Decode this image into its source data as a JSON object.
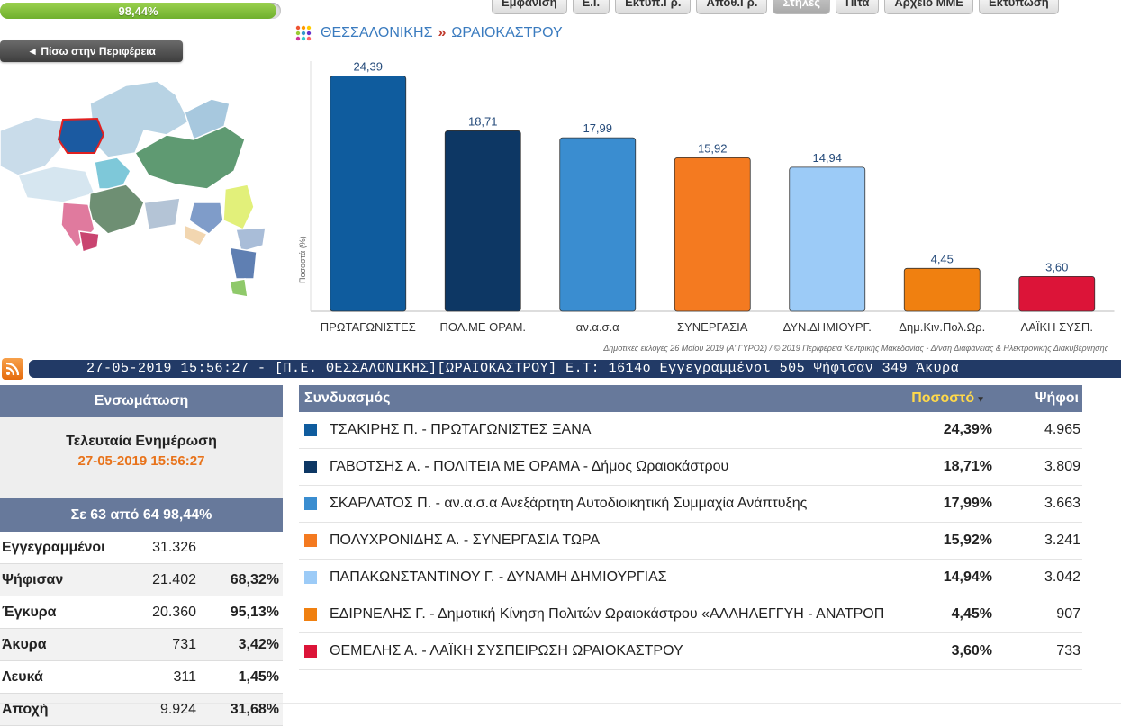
{
  "progress": {
    "label": "98,44%",
    "value": 98.44
  },
  "nav": [
    "Εμφάνιση",
    "Ε.Ι.",
    "Εκτυπ.Γρ.",
    "Αποθ.Γρ.",
    "Στήλες",
    "Πίτα",
    "Αρχείο ΜΜΕ",
    "Εκτύπωση"
  ],
  "nav_active": "Στήλες",
  "back_button": "◄ Πίσω στην Περιφέρεια",
  "breadcrumb": {
    "parent": "ΘΕΣΣΑΛΟΝΙΚΗΣ",
    "separator": "»",
    "current": "ΩΡΑΙΟΚΑΣΤΡΟΥ"
  },
  "chart_data": {
    "type": "bar",
    "categories": [
      "ΠΡΩΤΑΓΩΝΙΣΤΕΣ",
      "ΠΟΛ.ΜΕ ΟΡΑΜ.",
      "αν.α.σ.α",
      "ΣΥΝΕΡΓΑΣΙΑ",
      "ΔΥΝ.ΔΗΜΙΟΥΡΓ.",
      "Δημ.Κιν.Πολ.Ωρ.",
      "ΛΑΪΚΗ ΣΥΣΠ."
    ],
    "values": [
      24.39,
      18.71,
      17.99,
      15.92,
      14.94,
      4.45,
      3.6
    ],
    "value_labels": [
      "24,39",
      "18,71",
      "17,99",
      "15,92",
      "14,94",
      "4,45",
      "3,60"
    ],
    "colors": [
      "#0f5c9e",
      "#0d3764",
      "#3a8dd0",
      "#f47a20",
      "#9ccbf7",
      "#f08010",
      "#dc1438"
    ],
    "ylabel": "Ποσοστά (%)",
    "ylim": [
      0,
      25
    ]
  },
  "footnote": "Δημοτικές εκλογές 26 Μαΐου 2019 (Α' ΓΥΡΟΣ) / © 2019 Περιφέρεια Κεντρικής Μακεδονίας - Δ/νση Διαφάνειας & Ηλεκτρονικής Διακυβέρνησης",
  "ticker": "27-05-2019 15:56:27 - [Π.Ε. ΘΕΣΣΑΛΟΝΙΚΗΣ][ΩΡΑΙΟΚΑΣΤΡΟΥ]  Ε.Τ: 1614ο  Εγγεγραμμένοι 505  Ψήφισαν 349  Άκυρα",
  "left": {
    "title": "Ενσωμάτωση",
    "update_label": "Τελευταία Ενημέρωση",
    "update_time": "27-05-2019 15:56:27",
    "counted": "Σε 63 από  64   98,44%",
    "stats": [
      {
        "label": "Εγγεγραμμένοι",
        "value": "31.326",
        "pct": ""
      },
      {
        "label": "Ψήφισαν",
        "value": "21.402",
        "pct": "68,32%"
      },
      {
        "label": "Έγκυρα",
        "value": "20.360",
        "pct": "95,13%"
      },
      {
        "label": "Άκυρα",
        "value": "731",
        "pct": "3,42%"
      },
      {
        "label": "Λευκά",
        "value": "311",
        "pct": "1,45%"
      },
      {
        "label": "Αποχή",
        "value": "9.924",
        "pct": "31,68%"
      }
    ]
  },
  "results": {
    "headers": {
      "party": "Συνδυασμός",
      "pct": "Ποσοστό",
      "votes": "Ψήφοι"
    },
    "rows": [
      {
        "name": "ΤΣΑΚΙΡΗΣ Π. - ΠΡΩΤΑΓΩΝΙΣΤΕΣ ΞΑΝΑ",
        "pct": "24,39%",
        "votes": "4.965",
        "color": "#0f5c9e"
      },
      {
        "name": "ΓΑΒΟΤΣΗΣ Α. - ΠΟΛΙΤΕΙΑ ΜΕ ΟΡΑΜΑ - Δήμος Ωραιοκάστρου",
        "pct": "18,71%",
        "votes": "3.809",
        "color": "#0d3764"
      },
      {
        "name": "ΣΚΑΡΛΑΤΟΣ Π. - αν.α.σ.α Ανεξάρτητη Αυτοδιοικητική Συμμαχία Ανάπτυξης",
        "pct": "17,99%",
        "votes": "3.663",
        "color": "#3a8dd0"
      },
      {
        "name": "ΠΟΛΥΧΡΟΝΙΔΗΣ Α. - ΣΥΝΕΡΓΑΣΙΑ ΤΩΡΑ",
        "pct": "15,92%",
        "votes": "3.241",
        "color": "#f47a20"
      },
      {
        "name": "ΠΑΠΑΚΩΝΣΤΑΝΤΙΝΟΥ Γ. - ΔΥΝΑΜΗ ΔΗΜΙΟΥΡΓΙΑΣ",
        "pct": "14,94%",
        "votes": "3.042",
        "color": "#9ccbf7"
      },
      {
        "name": "ΕΔΙΡΝΕΛΗΣ Γ. - Δημοτική Κίνηση Πολιτών Ωραιοκάστρου «ΑΛΛΗΛΕΓΓΥΗ - ΑΝΑΤΡΟΠ",
        "pct": "4,45%",
        "votes": "907",
        "color": "#f08010"
      },
      {
        "name": "ΘΕΜΕΛΗΣ Α. - ΛΑΪΚΗ ΣΥΣΠΕΙΡΩΣΗ ΩΡΑΙΟΚΑΣΤΡΟΥ",
        "pct": "3,60%",
        "votes": "733",
        "color": "#dc1438"
      }
    ]
  }
}
